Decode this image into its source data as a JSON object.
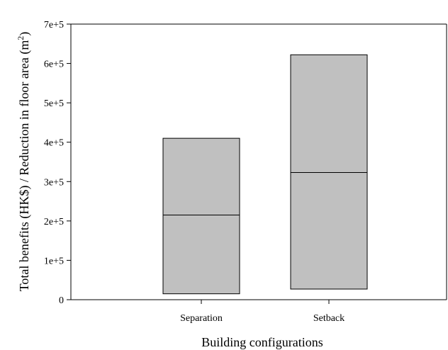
{
  "chart_data": {
    "type": "box",
    "categories": [
      "Separation",
      "Setback"
    ],
    "series": [
      {
        "boxes": [
          {
            "category": "Separation",
            "q1": 15000,
            "median": 215000,
            "q3": 410000
          },
          {
            "category": "Setback",
            "q1": 27000,
            "median": 323000,
            "q3": 622000
          }
        ]
      }
    ],
    "title": "",
    "xlabel": "Building configurations",
    "ylabel_prefix": "Total benefits (HK$) / Reduction in floor area (m",
    "ylabel_sup": "2",
    "ylabel_suffix": ")",
    "ylim": [
      0,
      700000
    ],
    "yticks": [
      0,
      100000,
      200000,
      300000,
      400000,
      500000,
      600000,
      700000
    ],
    "ytick_labels": [
      "0",
      "1e+5",
      "2e+5",
      "3e+5",
      "4e+5",
      "5e+5",
      "6e+5",
      "7e+5"
    ],
    "grid": false,
    "box_fill": "#c0c0c0",
    "line_color": "#000000"
  }
}
